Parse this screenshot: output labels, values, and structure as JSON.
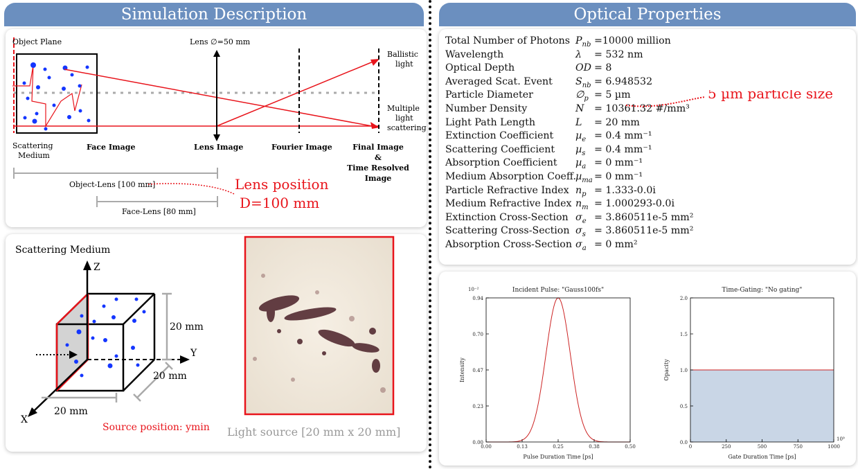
{
  "headers": {
    "left": "Simulation Description",
    "right": "Optical Properties"
  },
  "simulation": {
    "object_plane": "Object Plane",
    "lens_label": "Lens ∅=50 mm",
    "ballistic_1": "Ballistic",
    "ballistic_2": "light",
    "multiple_1": "Multiple",
    "multiple_2": "light",
    "multiple_3": "scattering",
    "scattering_1": "Scattering",
    "scattering_2": "Medium",
    "face_image": "Face Image",
    "lens_image": "Lens Image",
    "fourier_image": "Fourier Image",
    "final_1": "Final Image",
    "final_2": "&",
    "final_3": "Time Resolved",
    "final_4": "Image",
    "object_lens": "Object-Lens [100 mm]",
    "face_lens": "Face-Lens [80 mm]",
    "lens_pos_1": "Lens position",
    "lens_pos_2": "D=100 mm"
  },
  "medium": {
    "title": "Scattering Medium",
    "axis_z": "Z",
    "axis_y": "Y",
    "axis_x": "X",
    "dim_height": "20 mm",
    "dim_depth": "20 mm",
    "dim_width": "20 mm",
    "source_position": "Source position: ymin",
    "light_source": "Light source [20 mm x 20 mm]"
  },
  "optical_properties": [
    {
      "name": "Total Number of Photons",
      "symbol": "P",
      "sub": "nb",
      "value": "=10000 million"
    },
    {
      "name": "Wavelength",
      "symbol": "λ",
      "sub": "",
      "value": "= 532 nm"
    },
    {
      "name": "Optical Depth",
      "symbol": "OD",
      "sub": "",
      "value": "= 8"
    },
    {
      "name": "Averaged Scat. Event",
      "symbol": "S",
      "sub": "nb",
      "value": "= 6.948532"
    },
    {
      "name": "Particle Diameter",
      "symbol": "∅",
      "sub": "p",
      "value": "= 5 µm"
    },
    {
      "name": "Number Density",
      "symbol": "N",
      "sub": "",
      "value": "= 10361.32 #/mm³"
    },
    {
      "name": "Light Path Length",
      "symbol": "L",
      "sub": "",
      "value": "= 20 mm"
    },
    {
      "name": "Extinction Coefficient",
      "symbol": "µ",
      "sub": "e",
      "value": "= 0.4 mm⁻¹"
    },
    {
      "name": "Scattering Coefficient",
      "symbol": "µ",
      "sub": "s",
      "value": "= 0.4 mm⁻¹"
    },
    {
      "name": "Absorption Coefficient",
      "symbol": "µ",
      "sub": "a",
      "value": "= 0 mm⁻¹"
    },
    {
      "name": "Medium Absorption Coeff.",
      "symbol": "µ",
      "sub": "ma",
      "value": "= 0 mm⁻¹"
    },
    {
      "name": "Particle Refractive Index",
      "symbol": "n",
      "sub": "p",
      "value": "= 1.333-0.0i"
    },
    {
      "name": "Medium Refractive Index",
      "symbol": "n",
      "sub": "m",
      "value": "= 1.000293-0.0i"
    },
    {
      "name": "Extinction Cross-Section",
      "symbol": "σ",
      "sub": "e",
      "value": "= 3.860511e-5 mm²"
    },
    {
      "name": "Scattering Cross-Section",
      "symbol": "σ",
      "sub": "s",
      "value": "= 3.860511e-5 mm²"
    },
    {
      "name": "Absorption Cross-Section",
      "symbol": "σ",
      "sub": "a",
      "value": "= 0 mm²"
    }
  ],
  "particle_annotation": "5 µm particle size",
  "colors": {
    "header": "#6b8fbf",
    "annotation": "#e8141b",
    "particle": "#1436ff",
    "gating_fill": "#c9d6e6",
    "curve": "#cc2222"
  },
  "chart_data": [
    {
      "type": "line",
      "title": "Incident Pulse: \"Gauss100fs\"",
      "xlabel": "Pulse Duration Time [ps]",
      "ylabel": "Intensity",
      "y_multiplier": "10⁻²",
      "xlim": [
        0,
        0.5
      ],
      "ylim": [
        0,
        0.94
      ],
      "xticks": [
        "0.00",
        "0.13",
        "0.25",
        "0.38",
        "0.50"
      ],
      "yticks": [
        "0.00",
        "0.23",
        "0.47",
        "0.70",
        "0.94"
      ],
      "series": [
        {
          "peak_x": 0.25,
          "peak_y": 0.94,
          "fwhm": 0.1
        }
      ]
    },
    {
      "type": "area",
      "title": "Time-Gating: \"No gating\"",
      "xlabel": "Gate Duration Time [ps]",
      "ylabel": "Opacity",
      "x_multiplier": "10⁹",
      "xlim": [
        0,
        1000
      ],
      "ylim": [
        0,
        2.0
      ],
      "xticks": [
        "0",
        "250",
        "500",
        "750",
        "1000"
      ],
      "yticks": [
        "0.0",
        "0.5",
        "1.0",
        "1.5",
        "2.0"
      ],
      "series": [
        {
          "x": [
            0,
            1000
          ],
          "y": [
            1.0,
            1.0
          ]
        }
      ]
    }
  ]
}
